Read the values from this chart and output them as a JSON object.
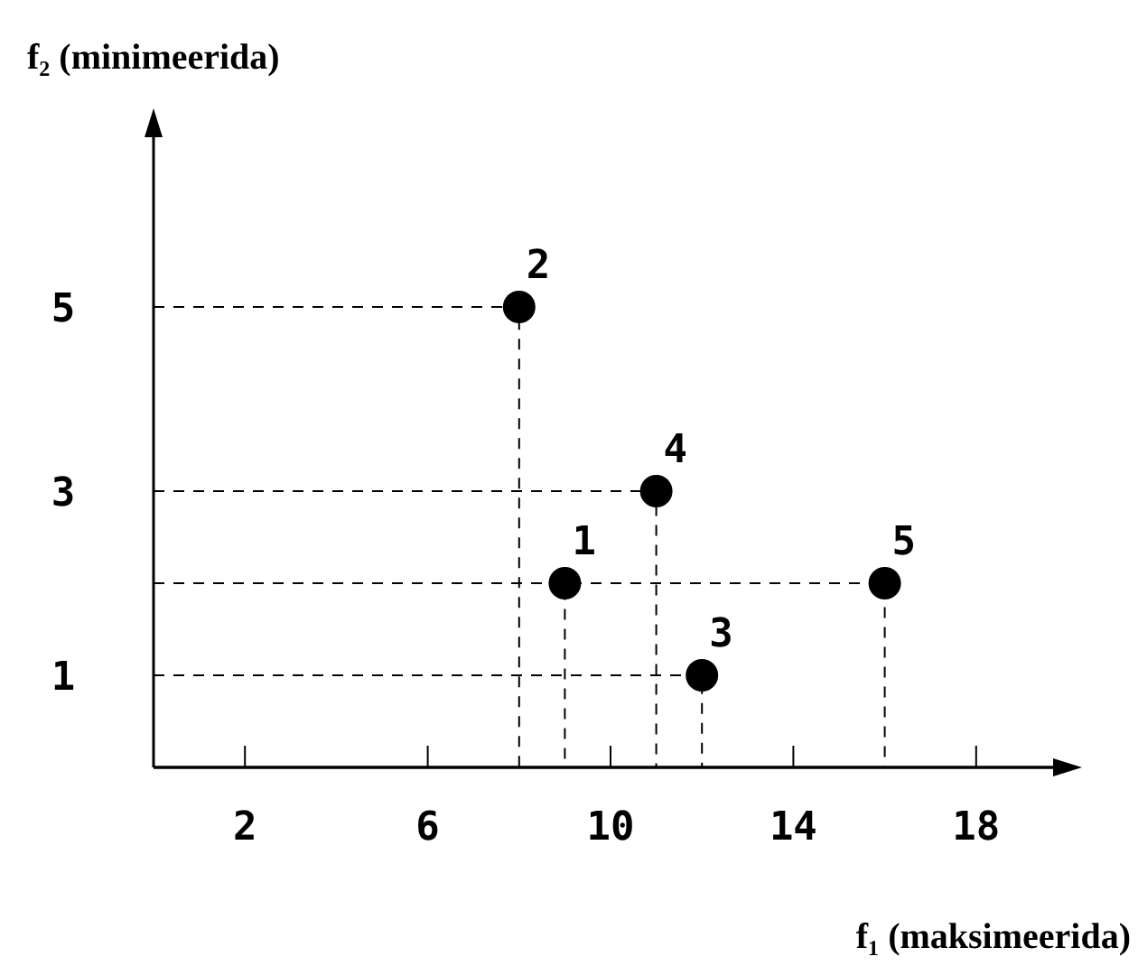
{
  "chart_data": {
    "type": "scatter",
    "xlabel": "f₁ (maksimeerida)",
    "ylabel": "f₂ (minimeerida)",
    "x": [
      9,
      8,
      12,
      11,
      16
    ],
    "series": [
      {
        "type": "line",
        "color": "#000000",
        "line_style": "dashed",
        "marker": "none",
        "x": [
          0,
          9,
          9
        ],
        "values": [
          2,
          2,
          0
        ]
      },
      {
        "type": "line",
        "color": "#000000",
        "line_style": "dashed",
        "marker": "none",
        "x": [
          0,
          8,
          8
        ],
        "values": [
          5,
          5,
          0
        ]
      },
      {
        "type": "line",
        "color": "#000000",
        "line_style": "dashed",
        "marker": "none",
        "x": [
          0,
          12,
          12
        ],
        "values": [
          1,
          1,
          0
        ]
      },
      {
        "type": "line",
        "color": "#000000",
        "line_style": "dashed",
        "marker": "none",
        "x": [
          0,
          11,
          11
        ],
        "values": [
          3,
          3,
          0
        ]
      },
      {
        "type": "line",
        "color": "#000000",
        "line_style": "dashed",
        "marker": "none",
        "x": [
          0,
          16,
          16
        ],
        "values": [
          2,
          2,
          0
        ]
      },
      {
        "color": "#000000",
        "values": [
          2,
          5,
          1,
          3,
          2
        ]
      }
    ],
    "marker": "circle",
    "xlim": [
      0,
      20
    ],
    "xticks": [
      2,
      6,
      10,
      14,
      18
    ],
    "ylim": [
      0,
      7
    ],
    "yticks": [
      1,
      3,
      5
    ],
    "annotations": [
      {
        "text": "1",
        "x": 9,
        "y": 2
      },
      {
        "text": "2",
        "x": 8,
        "y": 5
      },
      {
        "text": "3",
        "x": 12,
        "y": 1
      },
      {
        "text": "4",
        "x": 11,
        "y": 3
      },
      {
        "text": "5",
        "x": 16,
        "y": 2
      }
    ]
  }
}
